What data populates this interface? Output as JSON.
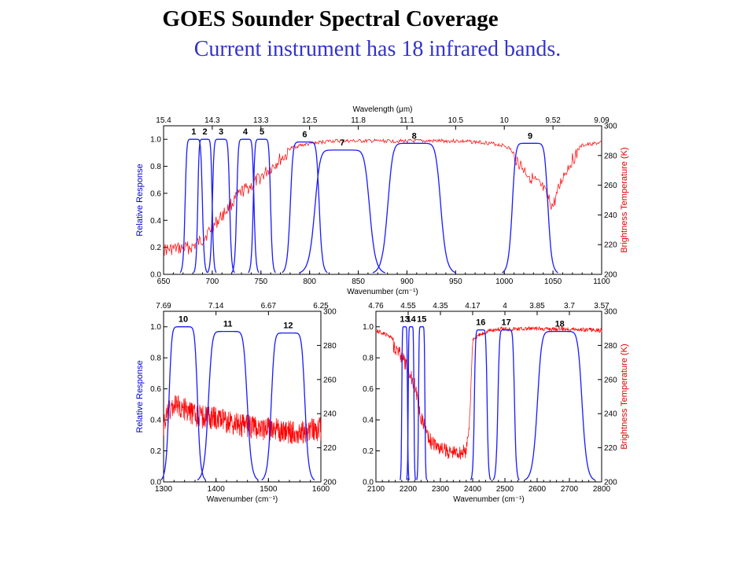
{
  "slide": {
    "title": "GOES Sounder Spectral Coverage",
    "subtitle": "Current instrument has 18 infrared bands."
  },
  "chart_data": [
    {
      "type": "line",
      "xlabel": "Wavenumber (cm⁻¹)",
      "x2label": "Wavelength (μm)",
      "ylabel": "Relative Response",
      "y2label": "Brightness Temperature (K)",
      "xlim": [
        650,
        1100
      ],
      "ylim": [
        0,
        1.1
      ],
      "y2lim": [
        200,
        300
      ],
      "xticks": [
        650,
        700,
        750,
        800,
        850,
        900,
        950,
        1000,
        1050,
        1100
      ],
      "yticks": [
        0.0,
        0.2,
        0.4,
        0.6,
        0.8,
        1.0
      ],
      "y2ticks": [
        200,
        220,
        240,
        260,
        280,
        300
      ],
      "x2ticks": [
        "15.4",
        "14.3",
        "13.3",
        "12.5",
        "11.8",
        "11.1",
        "10.5",
        "10",
        "9.52",
        "9.09"
      ],
      "bands": [
        {
          "label": "1",
          "lo": 672,
          "hi": 690,
          "peak": 1.0
        },
        {
          "label": "2",
          "lo": 685,
          "hi": 700,
          "peak": 1.0
        },
        {
          "label": "3",
          "lo": 700,
          "hi": 718,
          "peak": 1.0
        },
        {
          "label": "4",
          "lo": 725,
          "hi": 743,
          "peak": 1.0
        },
        {
          "label": "5",
          "lo": 742,
          "hi": 760,
          "peak": 1.0
        },
        {
          "label": "6",
          "lo": 780,
          "hi": 810,
          "peak": 0.98
        },
        {
          "label": "7",
          "lo": 805,
          "hi": 862,
          "peak": 0.92
        },
        {
          "label": "8",
          "lo": 880,
          "hi": 935,
          "peak": 0.97
        },
        {
          "label": "9",
          "lo": 1008,
          "hi": 1045,
          "peak": 0.97
        }
      ],
      "brightness_temp": {
        "x": [
          650,
          670,
          680,
          690,
          700,
          710,
          720,
          730,
          740,
          750,
          760,
          770,
          780,
          790,
          800,
          810,
          820,
          850,
          900,
          950,
          980,
          1000,
          1010,
          1020,
          1030,
          1040,
          1045,
          1050,
          1060,
          1070,
          1080,
          1100
        ],
        "y": [
          221,
          222,
          223,
          228,
          236,
          244,
          252,
          260,
          264,
          270,
          276,
          282,
          286,
          288,
          289,
          290,
          291,
          291,
          291,
          291,
          290,
          288,
          284,
          275,
          268,
          262,
          255,
          250,
          270,
          282,
          288,
          290
        ]
      }
    },
    {
      "type": "line",
      "xlabel": "Wavenumber (cm⁻¹)",
      "ylabel": "Relative Response",
      "xlim": [
        1300,
        1600
      ],
      "ylim": [
        0,
        1.1
      ],
      "y2lim": [
        200,
        300
      ],
      "xticks": [
        1300,
        1400,
        1500,
        1600
      ],
      "yticks": [
        0.0,
        0.2,
        0.4,
        0.6,
        0.8,
        1.0
      ],
      "y2ticks": [
        200,
        220,
        240,
        260,
        280,
        300
      ],
      "x2ticks": [
        "7.69",
        "7.14",
        "6.67",
        "6.25"
      ],
      "bands": [
        {
          "label": "10",
          "lo": 1310,
          "hi": 1365,
          "peak": 1.0
        },
        {
          "label": "11",
          "lo": 1385,
          "hi": 1460,
          "peak": 0.97
        },
        {
          "label": "12",
          "lo": 1505,
          "hi": 1570,
          "peak": 0.96
        }
      ],
      "brightness_temp": {
        "x": [
          1300,
          1310,
          1320,
          1340,
          1360,
          1380,
          1400,
          1450,
          1500,
          1550,
          1600
        ],
        "y": [
          240,
          248,
          252,
          250,
          246,
          245,
          244,
          240,
          238,
          236,
          238
        ]
      }
    },
    {
      "type": "line",
      "xlabel": "Wavenumber (cm⁻¹)",
      "y2label": "Brightness Temperature (K)",
      "xlim": [
        2100,
        2800
      ],
      "ylim": [
        0,
        1.1
      ],
      "y2lim": [
        200,
        300
      ],
      "xticks": [
        2100,
        2200,
        2300,
        2400,
        2500,
        2600,
        2700,
        2800
      ],
      "yticks": [
        0.0,
        0.2,
        0.4,
        0.6,
        0.8,
        1.0
      ],
      "y2ticks": [
        200,
        220,
        240,
        260,
        280,
        300
      ],
      "x2ticks": [
        "4.76",
        "4.55",
        "4.35",
        "4.17",
        "4",
        "3.85",
        "3.7",
        "3.57"
      ],
      "bands": [
        {
          "label": "13",
          "lo": 2180,
          "hi": 2198,
          "peak": 1.0
        },
        {
          "label": "14",
          "lo": 2200,
          "hi": 2218,
          "peak": 1.0
        },
        {
          "label": "15",
          "lo": 2232,
          "hi": 2252,
          "peak": 1.0
        },
        {
          "label": "16",
          "lo": 2405,
          "hi": 2445,
          "peak": 0.98
        },
        {
          "label": "17",
          "lo": 2478,
          "hi": 2530,
          "peak": 0.98
        },
        {
          "label": "18",
          "lo": 2600,
          "hi": 2740,
          "peak": 0.97
        }
      ],
      "brightness_temp": {
        "x": [
          2100,
          2150,
          2180,
          2200,
          2220,
          2240,
          2250,
          2270,
          2300,
          2330,
          2360,
          2380,
          2390,
          2400,
          2450,
          2500,
          2550,
          2600,
          2700,
          2800
        ],
        "y": [
          290,
          286,
          278,
          270,
          262,
          242,
          238,
          228,
          224,
          222,
          222,
          222,
          240,
          285,
          290,
          291,
          291,
          291,
          291,
          290
        ]
      }
    }
  ]
}
